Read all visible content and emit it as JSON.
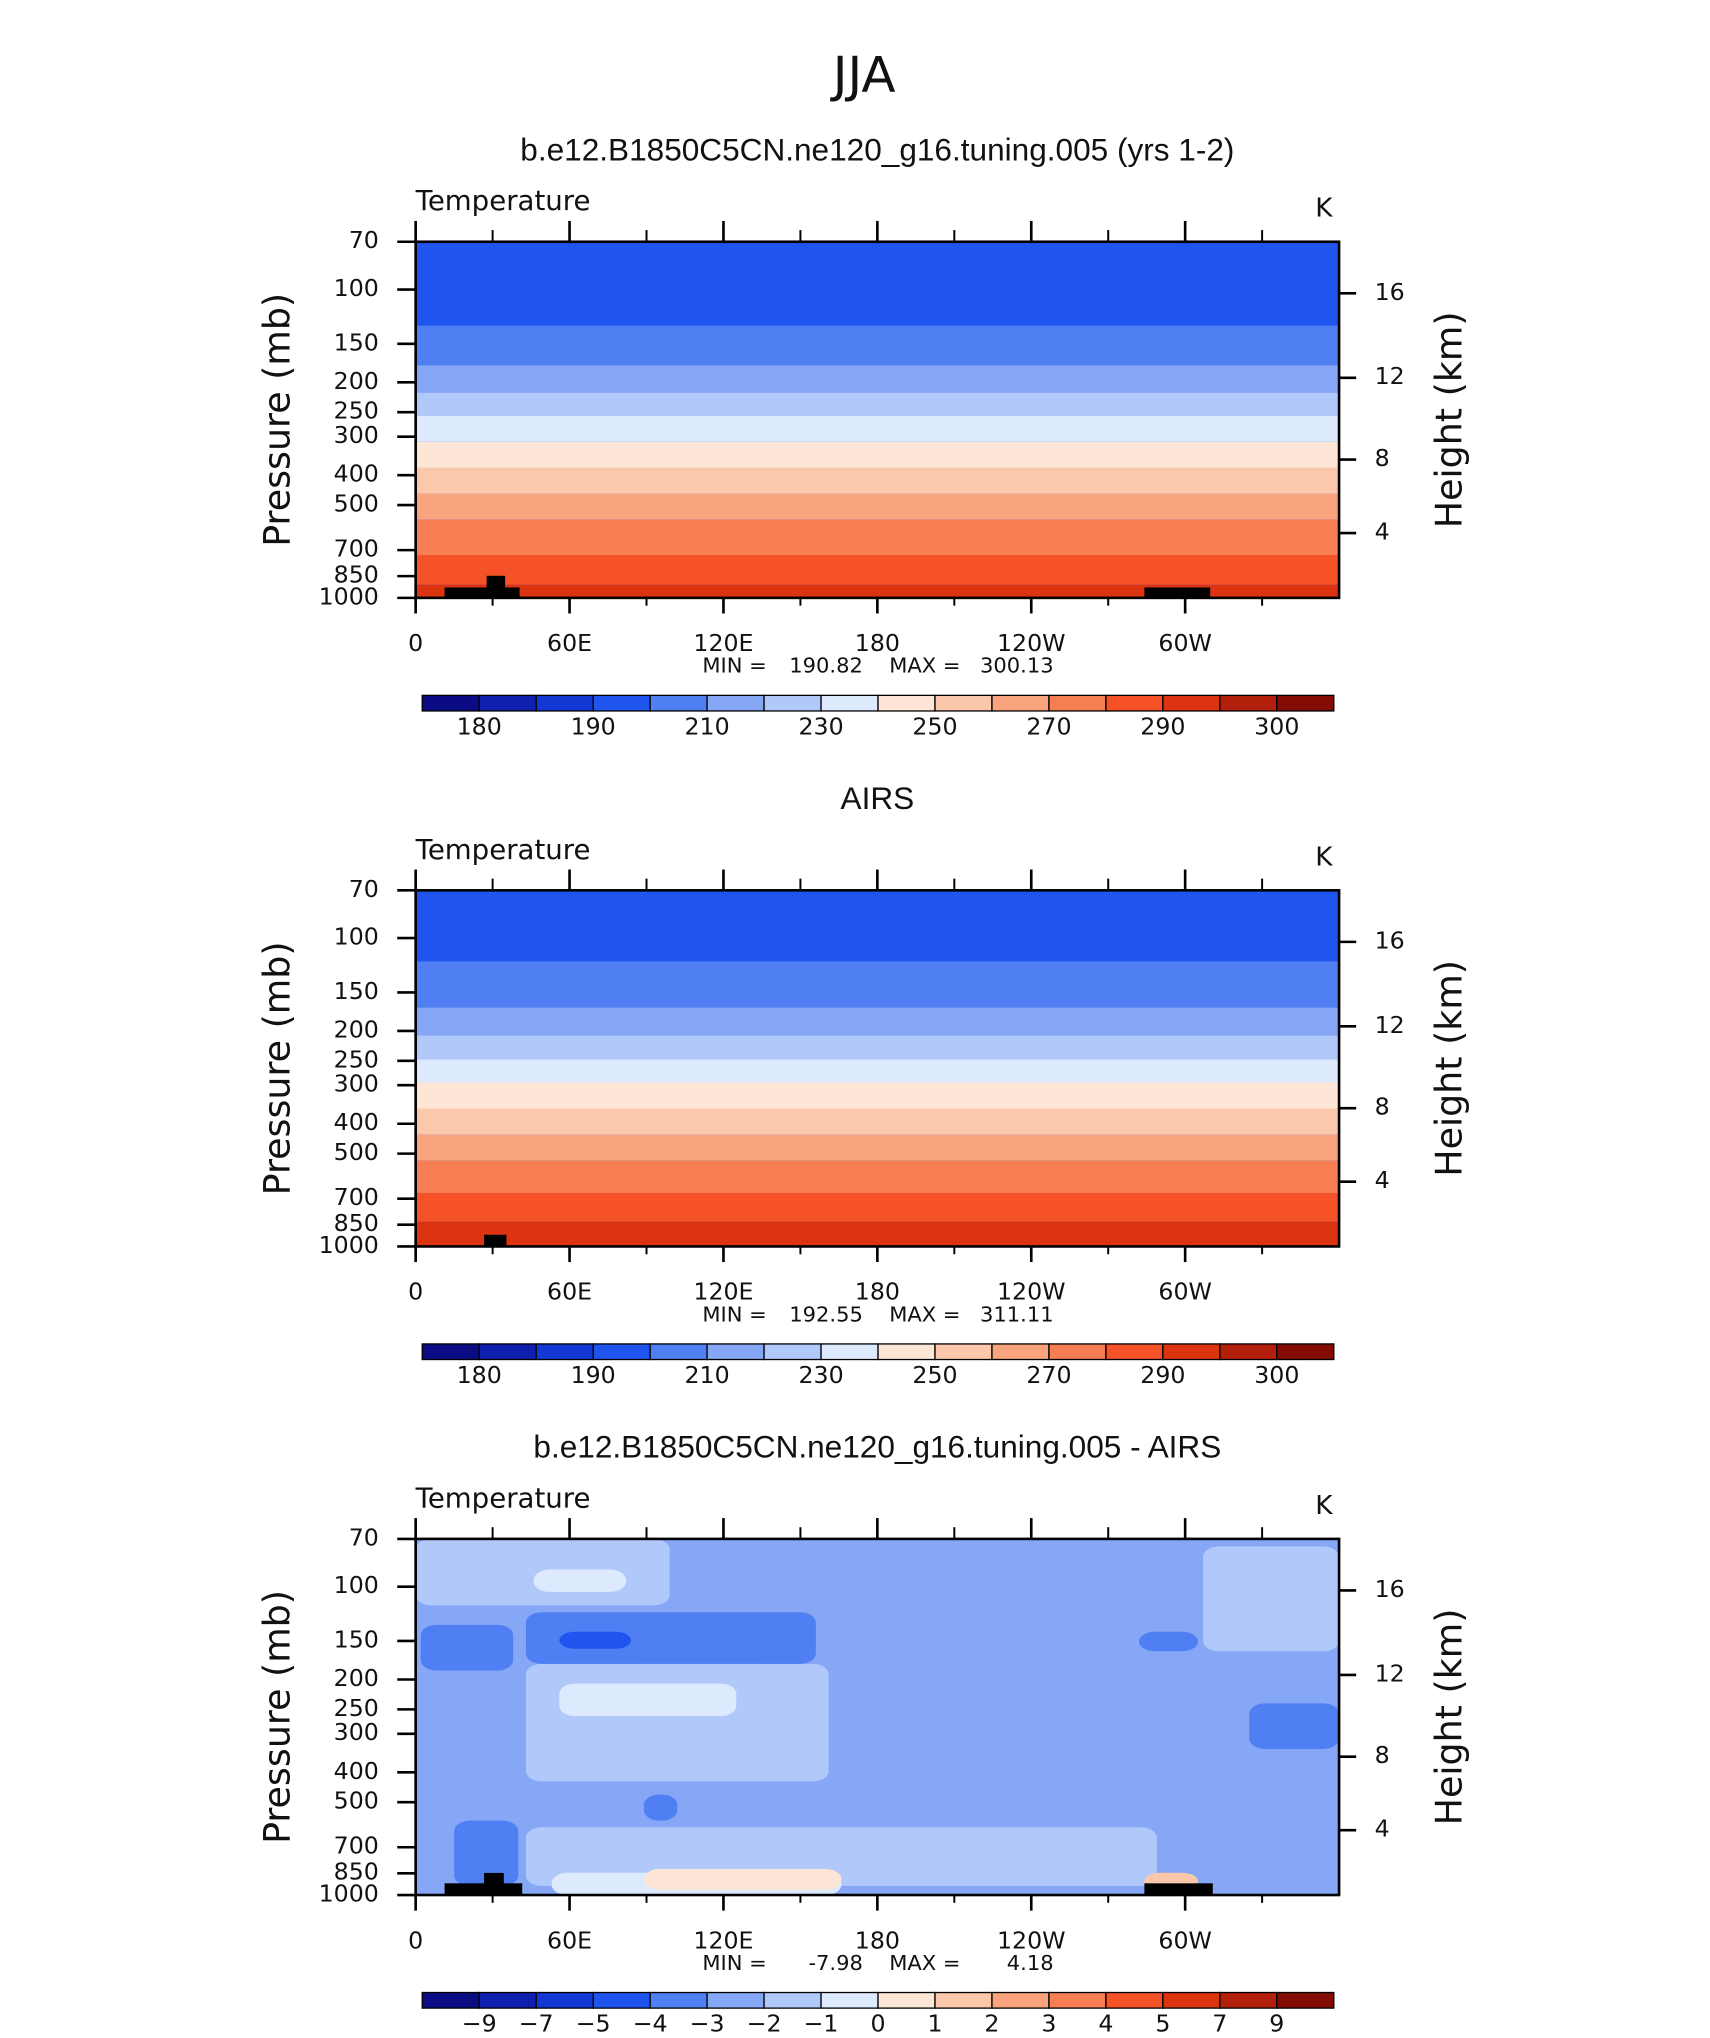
{
  "title": "JJA",
  "chart_data": [
    {
      "type": "contour",
      "title": "b.e12.B1850C5CN.ne120_g16.tuning.005 (yrs 1-2)",
      "left_label": "Temperature",
      "right_label": "K",
      "ylabel": "Pressure (mb)",
      "y2label": "Height (km)",
      "xlim": [
        0,
        360
      ],
      "xticks": [
        0,
        {
          "value": 60,
          "label": "60E"
        },
        {
          "value": 120,
          "label": "120E"
        },
        180,
        {
          "value": 240,
          "label": "120W"
        },
        {
          "value": 300,
          "label": "60W"
        }
      ],
      "xminorticks": [
        30,
        90,
        150,
        210,
        270,
        330
      ],
      "ylim": [
        1000,
        70
      ],
      "ylog": true,
      "yticks": [
        70,
        100,
        150,
        200,
        250,
        300,
        400,
        500,
        700,
        850,
        1000
      ],
      "y2ticks": [
        4,
        8,
        12,
        16
      ],
      "min_label": "MIN  =",
      "min": 190.82,
      "max_label": "MAX  =",
      "max": 300.13,
      "background": "#1f55ee",
      "bands": [
        {
          "p": [
            70,
            131
          ],
          "color": "#1f55ee"
        },
        {
          "p": [
            131,
            176
          ],
          "color": "#4f7ff3"
        },
        {
          "p": [
            176,
            216
          ],
          "color": "#86a6f6"
        },
        {
          "p": [
            216,
            257
          ],
          "color": "#b1c9fa"
        },
        {
          "p": [
            257,
            312
          ],
          "color": "#dde9fd"
        },
        {
          "p": [
            312,
            379
          ],
          "color": "#fde6d5"
        },
        {
          "p": [
            379,
            460
          ],
          "color": "#fcc8ac"
        },
        {
          "p": [
            460,
            558
          ],
          "color": "#f9a37f"
        },
        {
          "p": [
            558,
            726
          ],
          "color": "#f77d52"
        },
        {
          "p": [
            726,
            907
          ],
          "color": "#f55327"
        },
        {
          "p": [
            907,
            1000
          ],
          "color": "#dc3411"
        }
      ],
      "colorbar": {
        "colors": [
          "#0b0b84",
          "#0f1fae",
          "#1338d4",
          "#1f55ee",
          "#4f7ff3",
          "#86a6f6",
          "#b1c9fa",
          "#dde9fd",
          "#fde6d5",
          "#fcc8ac",
          "#f9a37f",
          "#f77d52",
          "#f55327",
          "#dc3411",
          "#b21f0a",
          "#830c05"
        ],
        "labels": [
          180,
          190,
          210,
          230,
          250,
          270,
          290,
          300
        ],
        "label_every": 2
      }
    },
    {
      "type": "contour",
      "title": "AIRS",
      "left_label": "Temperature",
      "right_label": "K",
      "ylabel": "Pressure (mb)",
      "y2label": "Height (km)",
      "xlim": [
        0,
        360
      ],
      "xticks": [
        0,
        {
          "value": 60,
          "label": "60E"
        },
        {
          "value": 120,
          "label": "120E"
        },
        180,
        {
          "value": 240,
          "label": "120W"
        },
        {
          "value": 300,
          "label": "60W"
        }
      ],
      "xminorticks": [
        30,
        90,
        150,
        210,
        270,
        330
      ],
      "ylim": [
        1000,
        70
      ],
      "ylog": true,
      "yticks": [
        70,
        100,
        150,
        200,
        250,
        300,
        400,
        500,
        700,
        850,
        1000
      ],
      "y2ticks": [
        4,
        8,
        12,
        16
      ],
      "min_label": "MIN  =",
      "min": 192.55,
      "max_label": "MAX  =",
      "max": 311.11,
      "background": "#1f55ee",
      "bands": [
        {
          "p": [
            70,
            119
          ],
          "color": "#1f55ee"
        },
        {
          "p": [
            119,
            168
          ],
          "color": "#4f7ff3"
        },
        {
          "p": [
            168,
            207
          ],
          "color": "#86a6f6"
        },
        {
          "p": [
            207,
            247
          ],
          "color": "#b1c9fa"
        },
        {
          "p": [
            247,
            294
          ],
          "color": "#dde9fd"
        },
        {
          "p": [
            294,
            357
          ],
          "color": "#fde6d5"
        },
        {
          "p": [
            357,
            434
          ],
          "color": "#fcc8ac"
        },
        {
          "p": [
            434,
            527
          ],
          "color": "#f9a37f"
        },
        {
          "p": [
            527,
            671
          ],
          "color": "#f77d52"
        },
        {
          "p": [
            671,
            832
          ],
          "color": "#f55327"
        },
        {
          "p": [
            832,
            1000
          ],
          "color": "#dc3411"
        }
      ],
      "colorbar": {
        "colors": [
          "#0b0b84",
          "#0f1fae",
          "#1338d4",
          "#1f55ee",
          "#4f7ff3",
          "#86a6f6",
          "#b1c9fa",
          "#dde9fd",
          "#fde6d5",
          "#fcc8ac",
          "#f9a37f",
          "#f77d52",
          "#f55327",
          "#dc3411",
          "#b21f0a",
          "#830c05"
        ],
        "labels": [
          180,
          190,
          210,
          230,
          250,
          270,
          290,
          300
        ],
        "label_every": 2
      }
    },
    {
      "type": "contour",
      "title": "b.e12.B1850C5CN.ne120_g16.tuning.005 - AIRS",
      "left_label": "Temperature",
      "right_label": "K",
      "ylabel": "Pressure (mb)",
      "y2label": "Height (km)",
      "xlim": [
        0,
        360
      ],
      "xticks": [
        0,
        {
          "value": 60,
          "label": "60E"
        },
        {
          "value": 120,
          "label": "120E"
        },
        180,
        {
          "value": 240,
          "label": "120W"
        },
        {
          "value": 300,
          "label": "60W"
        }
      ],
      "xminorticks": [
        30,
        90,
        150,
        210,
        270,
        330
      ],
      "ylim": [
        1000,
        70
      ],
      "ylog": true,
      "yticks": [
        70,
        100,
        150,
        200,
        250,
        300,
        400,
        500,
        700,
        850,
        1000
      ],
      "y2ticks": [
        4,
        8,
        12,
        16
      ],
      "min_label": "MIN =",
      "min": -7.98,
      "max_label": "MAX =",
      "max": 4.18,
      "background": "#86a6f6",
      "regions": [
        {
          "lon": [
            0,
            99
          ],
          "p": [
            70,
            115
          ],
          "color": "#b1c9fa"
        },
        {
          "lon": [
            307,
            360
          ],
          "p": [
            74,
            162
          ],
          "color": "#b1c9fa"
        },
        {
          "lon": [
            43,
            161
          ],
          "p": [
            178,
            428
          ],
          "color": "#b1c9fa"
        },
        {
          "lon": [
            43,
            289
          ],
          "p": [
            603,
            934
          ],
          "color": "#b1c9fa"
        },
        {
          "lon": [
            46,
            82
          ],
          "p": [
            88,
            104
          ],
          "color": "#dde9fd"
        },
        {
          "lon": [
            56,
            125
          ],
          "p": [
            206,
            263
          ],
          "color": "#dde9fd"
        },
        {
          "lon": [
            53,
            166
          ],
          "p": [
            847,
            1000
          ],
          "color": "#dde9fd"
        },
        {
          "lon": [
            43,
            156
          ],
          "p": [
            121,
            178
          ],
          "color": "#4f7ff3"
        },
        {
          "lon": [
            2,
            38
          ],
          "p": [
            133,
            187
          ],
          "color": "#4f7ff3"
        },
        {
          "lon": [
            282,
            305
          ],
          "p": [
            140,
            162
          ],
          "color": "#4f7ff3"
        },
        {
          "lon": [
            325,
            360
          ],
          "p": [
            239,
            336
          ],
          "color": "#4f7ff3"
        },
        {
          "lon": [
            89,
            102
          ],
          "p": [
            472,
            574
          ],
          "color": "#4f7ff3"
        },
        {
          "lon": [
            15,
            40
          ],
          "p": [
            574,
            934
          ],
          "color": "#4f7ff3"
        },
        {
          "lon": [
            56,
            84
          ],
          "p": [
            140,
            159
          ],
          "color": "#1f55ee"
        },
        {
          "lon": [
            89,
            166
          ],
          "p": [
            823,
            962
          ],
          "color": "#fde6d5"
        },
        {
          "lon": [
            284,
            305
          ],
          "p": [
            847,
            962
          ],
          "color": "#fcc8ac"
        }
      ],
      "colorbar": {
        "colors": [
          "#0b0b84",
          "#0f1fae",
          "#1338d4",
          "#1f55ee",
          "#4f7ff3",
          "#86a6f6",
          "#b1c9fa",
          "#dde9fd",
          "#fde6d5",
          "#fcc8ac",
          "#f9a37f",
          "#f77d52",
          "#f55327",
          "#dc3411",
          "#b21f0a",
          "#830c05"
        ],
        "labels": [
          {
            "value": -9,
            "label": "−9"
          },
          {
            "value": -7,
            "label": "−7"
          },
          {
            "value": -5,
            "label": "−5"
          },
          {
            "value": -4,
            "label": "−4"
          },
          {
            "value": -3,
            "label": "−3"
          },
          {
            "value": -2,
            "label": "−2"
          },
          {
            "value": -1,
            "label": "−1"
          },
          0,
          1,
          2,
          3,
          4,
          5,
          7,
          9
        ],
        "label_every": 1
      }
    }
  ]
}
